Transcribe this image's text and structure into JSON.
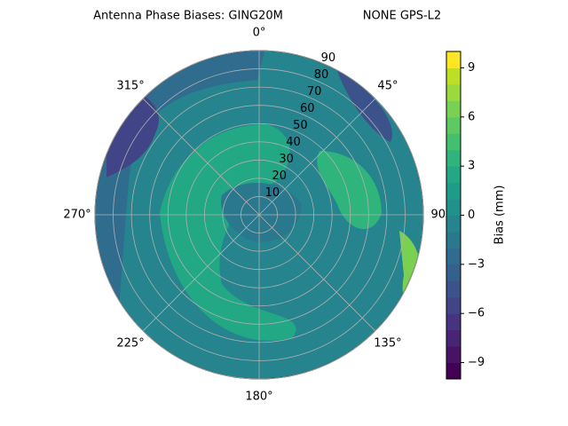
{
  "chart_data": {
    "type": "polar-contour",
    "title": "Antenna Phase Biases: GING20M",
    "subtitle": "NONE GPS-L2",
    "rlim": [
      0,
      90
    ],
    "rticks": [
      10,
      20,
      30,
      40,
      50,
      60,
      70,
      80,
      90
    ],
    "thetaticks": [
      {
        "value": 0,
        "label": "0°"
      },
      {
        "value": 45,
        "label": "45°"
      },
      {
        "value": 90,
        "label": "90°"
      },
      {
        "value": 135,
        "label": "135°"
      },
      {
        "value": 180,
        "label": "180°"
      },
      {
        "value": 225,
        "label": "225°"
      },
      {
        "value": 270,
        "label": "270°"
      },
      {
        "value": 315,
        "label": "315°"
      }
    ],
    "grid": true,
    "colorbar": {
      "label": "Bias (mm)",
      "lim": [
        -10,
        10
      ],
      "ticks": [
        {
          "value": -9,
          "label": "−9"
        },
        {
          "value": -6,
          "label": "−6"
        },
        {
          "value": -3,
          "label": "−3"
        },
        0,
        3,
        6,
        9
      ],
      "levels": [
        -10,
        -9,
        -8,
        -7,
        -6,
        -5,
        -4,
        -3,
        -2,
        -1,
        0,
        1,
        2,
        3,
        4,
        5,
        6,
        7,
        8,
        9,
        10
      ],
      "colors": [
        "#440154",
        "#471365",
        "#482475",
        "#463480",
        "#414487",
        "#3b528b",
        "#355f8d",
        "#2f6c8e",
        "#2a788e",
        "#25848e",
        "#21918c",
        "#1e9c89",
        "#22a884",
        "#2fb47c",
        "#44bf70",
        "#5ec962",
        "#7ad151",
        "#9bd93c",
        "#bddf26",
        "#fde725"
      ]
    }
  }
}
